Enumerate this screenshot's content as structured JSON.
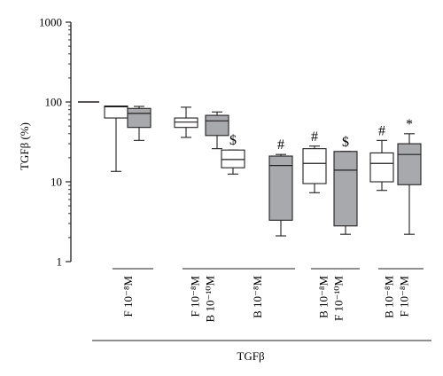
{
  "chart_data": {
    "type": "box",
    "ylabel": "TGFβ (%)",
    "yscale": "log",
    "ylim": [
      1,
      1000
    ],
    "yticks": [
      "1",
      "10",
      "100",
      "1000"
    ],
    "box_fill": [
      "#ffffff",
      "#a7a9ac"
    ],
    "control": {
      "value": 100
    },
    "groups": [
      {
        "labels": [
          "F 10⁻⁸M"
        ],
        "boxes": [
          {
            "fill": 0,
            "min": 13.5,
            "q1": 63,
            "median": 87,
            "q3": 89,
            "max": 89,
            "mark": ""
          },
          {
            "fill": 1,
            "min": 33,
            "q1": 48,
            "median": 72,
            "q3": 83,
            "max": 88,
            "mark": ""
          }
        ]
      },
      {
        "labels": [
          "F 10⁻⁸M",
          "B 10⁻¹⁰M"
        ],
        "boxes": [
          {
            "fill": 0,
            "min": 36,
            "q1": 48,
            "median": 56,
            "q3": 63,
            "max": 86,
            "mark": ""
          },
          {
            "fill": 1,
            "min": 26,
            "q1": 38,
            "median": 58,
            "q3": 68,
            "max": 75,
            "mark": ""
          }
        ]
      },
      {
        "labels": [
          "B 10⁻⁸M"
        ],
        "boxes": [
          {
            "fill": 0,
            "min": 12.5,
            "q1": 15,
            "median": 19,
            "q3": 25,
            "max": 25,
            "mark": "$"
          },
          {
            "fill": 1,
            "min": 2.1,
            "q1": 3.3,
            "median": 16,
            "q3": 21,
            "max": 22,
            "mark": "#"
          }
        ]
      },
      {
        "labels": [
          "B 10⁻⁸M",
          "F 10⁻¹⁰M"
        ],
        "boxes": [
          {
            "fill": 0,
            "min": 7.3,
            "q1": 9.5,
            "median": 17,
            "q3": 26,
            "max": 28,
            "mark": "#"
          },
          {
            "fill": 1,
            "min": 2.2,
            "q1": 2.8,
            "median": 14,
            "q3": 24,
            "max": 24,
            "mark": "$"
          }
        ]
      },
      {
        "labels": [
          "B 10⁻⁸M",
          "F 10⁻⁸M"
        ],
        "boxes": [
          {
            "fill": 0,
            "min": 7.8,
            "q1": 10,
            "median": 17,
            "q3": 23,
            "max": 33,
            "mark": "#"
          },
          {
            "fill": 1,
            "min": 2.2,
            "q1": 9.2,
            "median": 22,
            "q3": 30,
            "max": 40,
            "mark": "*"
          }
        ]
      }
    ],
    "xlabel": "TGFβ"
  }
}
